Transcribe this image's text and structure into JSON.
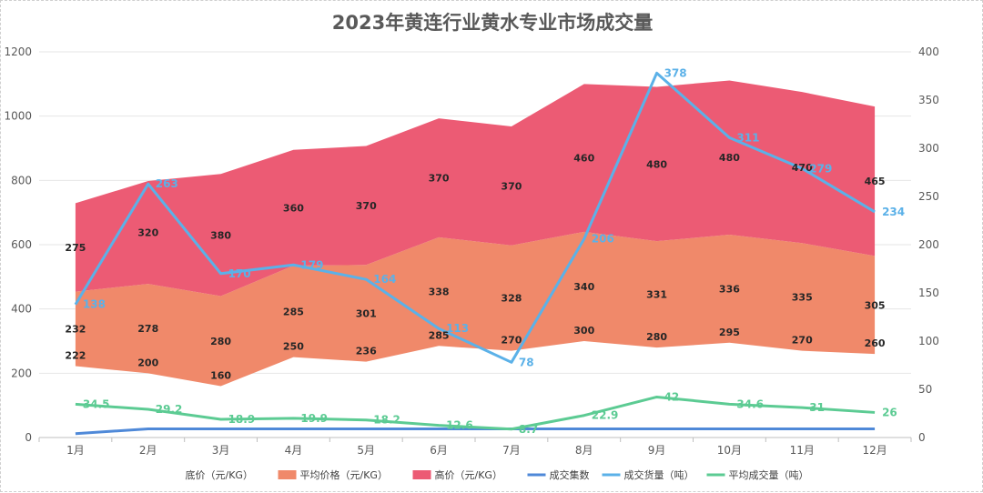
{
  "chart_data": {
    "type": "area",
    "title": "2023年黄连行业黄水专业市场成交量",
    "categories": [
      "1月",
      "2月",
      "3月",
      "4月",
      "5月",
      "6月",
      "7月",
      "8月",
      "9月",
      "10月",
      "11月",
      "12月"
    ],
    "left_axis": {
      "ylim": [
        0,
        1200
      ],
      "ticks": [
        "0",
        "200",
        "400",
        "600",
        "800",
        "1000",
        "1200"
      ]
    },
    "right_axis": {
      "ylim": [
        0,
        400
      ],
      "ticks": [
        "0",
        "50",
        "100",
        "150",
        "200",
        "250",
        "300",
        "350",
        "400"
      ]
    },
    "stacked_series": [
      {
        "name": "底价（元/KG）",
        "color": "#ffffff",
        "values": [
          222,
          200,
          160,
          250,
          236,
          285,
          270,
          300,
          280,
          295,
          270,
          260
        ]
      },
      {
        "name": "平均价格（元/KG）",
        "color": "#f0896a",
        "values": [
          232,
          278,
          280,
          285,
          301,
          338,
          328,
          340,
          331,
          336,
          335,
          305
        ]
      },
      {
        "name": "高价（元/KG）",
        "color": "#ec5b74",
        "values": [
          275,
          320,
          380,
          360,
          370,
          370,
          370,
          460,
          480,
          480,
          470,
          465
        ]
      }
    ],
    "line_series": [
      {
        "name": "成交集数",
        "color": "#4f89d8",
        "axis": "right",
        "values": [
          4,
          9,
          9,
          9,
          9,
          9,
          9,
          9,
          9,
          9,
          9,
          9
        ],
        "labels": [
          "",
          "",
          "",
          "",
          "",
          "",
          "",
          "",
          "",
          "",
          "",
          ""
        ]
      },
      {
        "name": "成交货量（吨）",
        "color": "#5bb1e8",
        "axis": "right",
        "values": [
          138,
          263,
          170,
          179,
          164,
          113,
          78,
          206,
          378,
          311,
          279,
          234
        ],
        "labels": [
          "138",
          "263",
          "170",
          "179",
          "164",
          "113",
          "78",
          "206",
          "378",
          "311",
          "279",
          "234"
        ]
      },
      {
        "name": "平均成交量（吨）",
        "color": "#5ccb93",
        "axis": "right",
        "values": [
          34.5,
          29.2,
          18.9,
          19.9,
          18.2,
          12.6,
          8.7,
          22.9,
          42,
          34.6,
          31,
          26
        ],
        "labels": [
          "34.5",
          "29.2",
          "18.9",
          "19.9",
          "18.2",
          "12.6",
          "8.7",
          "22.9",
          "42",
          "34.6",
          "31",
          "26"
        ]
      }
    ],
    "legend": {
      "position": "bottom"
    }
  }
}
